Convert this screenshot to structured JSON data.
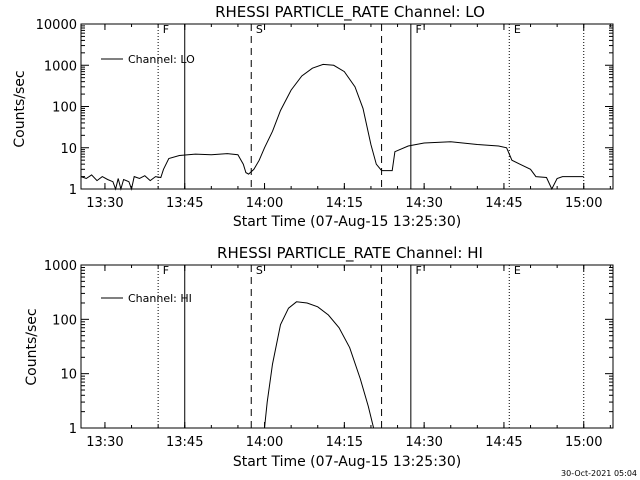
{
  "chart_data": [
    {
      "type": "line",
      "title": "RHESSI PARTICLE_RATE Channel: LO",
      "xlabel": "Start Time (07-Aug-15 13:25:30)",
      "ylabel": "Counts/sec",
      "x_ticks": [
        "13:30",
        "13:45",
        "14:00",
        "14:15",
        "14:30",
        "14:45",
        "15:00"
      ],
      "y_ticks": [
        "1",
        "10",
        "100",
        "1000",
        "10000"
      ],
      "yscale": "log",
      "xlim": [
        "13:25:30",
        "15:05:30"
      ],
      "ylim": [
        1,
        10000
      ],
      "legend": {
        "position": "top-left",
        "label": "Channel: LO"
      },
      "grid": false,
      "markers": {
        "solid": [
          "13:45:00",
          "14:27:30"
        ],
        "dashed": [
          "13:57:30",
          "14:22:00"
        ],
        "dotted": [
          "13:40:00",
          "14:46:00",
          "15:00:00"
        ]
      },
      "mark_labels": [
        {
          "text": "F",
          "at": "13:40:30"
        },
        {
          "text": "S",
          "at": "13:58:00"
        },
        {
          "text": "F",
          "at": "14:28:00"
        },
        {
          "text": "E",
          "at": "14:46:30"
        }
      ],
      "series": [
        {
          "points": [
            [
              "13:25:30",
              2.0
            ],
            [
              "13:26:30",
              1.8
            ],
            [
              "13:27:30",
              2.2
            ],
            [
              "13:28:30",
              1.6
            ],
            [
              "13:29:30",
              2.0
            ],
            [
              "13:30:30",
              1.7
            ],
            [
              "13:31:30",
              1.5
            ],
            [
              "13:32:00",
              1.0
            ],
            [
              "13:32:30",
              1.8
            ],
            [
              "13:33:00",
              1.0
            ],
            [
              "13:33:30",
              1.7
            ],
            [
              "13:34:30",
              1.5
            ],
            [
              "13:35:00",
              1.0
            ],
            [
              "13:35:30",
              2.0
            ],
            [
              "13:36:30",
              1.8
            ],
            [
              "13:37:30",
              2.1
            ],
            [
              "13:38:30",
              1.6
            ],
            [
              "13:39:30",
              2.0
            ],
            [
              "13:40:30",
              1.9
            ],
            [
              "13:41:00",
              3.0
            ],
            [
              "13:42:00",
              5.5
            ],
            [
              "13:44:00",
              6.5
            ],
            [
              "13:47:00",
              7.0
            ],
            [
              "13:50:00",
              6.8
            ],
            [
              "13:53:00",
              7.2
            ],
            [
              "13:55:00",
              6.8
            ],
            [
              "13:56:00",
              4.0
            ],
            [
              "13:56:30",
              2.5
            ],
            [
              "13:57:00",
              2.3
            ],
            [
              "13:58:00",
              3.0
            ],
            [
              "13:59:00",
              5.0
            ],
            [
              "14:00:00",
              10
            ],
            [
              "14:01:30",
              25
            ],
            [
              "14:03:00",
              80
            ],
            [
              "14:05:00",
              250
            ],
            [
              "14:07:00",
              550
            ],
            [
              "14:09:00",
              850
            ],
            [
              "14:11:00",
              1050
            ],
            [
              "14:13:00",
              1000
            ],
            [
              "14:15:00",
              700
            ],
            [
              "14:17:00",
              300
            ],
            [
              "14:18:30",
              90
            ],
            [
              "14:20:00",
              12
            ],
            [
              "14:21:00",
              4.0
            ],
            [
              "14:22:00",
              2.8
            ],
            [
              "14:24:00",
              2.8
            ],
            [
              "14:24:30",
              8.0
            ],
            [
              "14:27:00",
              11
            ],
            [
              "14:30:00",
              13
            ],
            [
              "14:35:00",
              14
            ],
            [
              "14:40:00",
              12
            ],
            [
              "14:44:00",
              11
            ],
            [
              "14:45:30",
              10
            ],
            [
              "14:46:30",
              5.0
            ],
            [
              "14:48:00",
              4.0
            ],
            [
              "14:50:00",
              3.0
            ],
            [
              "14:51:00",
              2.0
            ],
            [
              "14:53:00",
              1.9
            ],
            [
              "14:54:00",
              1.0
            ],
            [
              "14:55:00",
              1.8
            ],
            [
              "14:56:00",
              2.0
            ],
            [
              "15:00:00",
              2.0
            ]
          ]
        }
      ]
    },
    {
      "type": "line",
      "title": "RHESSI PARTICLE_RATE Channel: HI",
      "xlabel": "Start Time (07-Aug-15 13:25:30)",
      "ylabel": "Counts/sec",
      "x_ticks": [
        "13:30",
        "13:45",
        "14:00",
        "14:15",
        "14:30",
        "14:45",
        "15:00"
      ],
      "y_ticks": [
        "1",
        "10",
        "100",
        "1000"
      ],
      "yscale": "log",
      "xlim": [
        "13:25:30",
        "15:05:30"
      ],
      "ylim": [
        1,
        1000
      ],
      "legend": {
        "position": "top-left",
        "label": "Channel: HI"
      },
      "grid": false,
      "markers": {
        "solid": [
          "13:45:00",
          "14:27:30"
        ],
        "dashed": [
          "13:57:30",
          "14:22:00"
        ],
        "dotted": [
          "13:40:00",
          "14:46:00",
          "15:00:00"
        ]
      },
      "mark_labels": [
        {
          "text": "F",
          "at": "13:40:30"
        },
        {
          "text": "S",
          "at": "13:58:00"
        },
        {
          "text": "F",
          "at": "14:28:00"
        },
        {
          "text": "E",
          "at": "14:46:30"
        }
      ],
      "series": [
        {
          "points": [
            [
              "14:00:00",
              1.0
            ],
            [
              "14:00:30",
              3.0
            ],
            [
              "14:01:30",
              15
            ],
            [
              "14:03:00",
              80
            ],
            [
              "14:04:30",
              160
            ],
            [
              "14:06:00",
              210
            ],
            [
              "14:08:00",
              200
            ],
            [
              "14:10:00",
              170
            ],
            [
              "14:12:00",
              120
            ],
            [
              "14:14:00",
              70
            ],
            [
              "14:16:00",
              30
            ],
            [
              "14:18:00",
              8
            ],
            [
              "14:19:30",
              2.5
            ],
            [
              "14:20:30",
              1.0
            ]
          ]
        }
      ]
    }
  ],
  "footer": {
    "timestamp": "30-Oct-2021 05:04"
  }
}
